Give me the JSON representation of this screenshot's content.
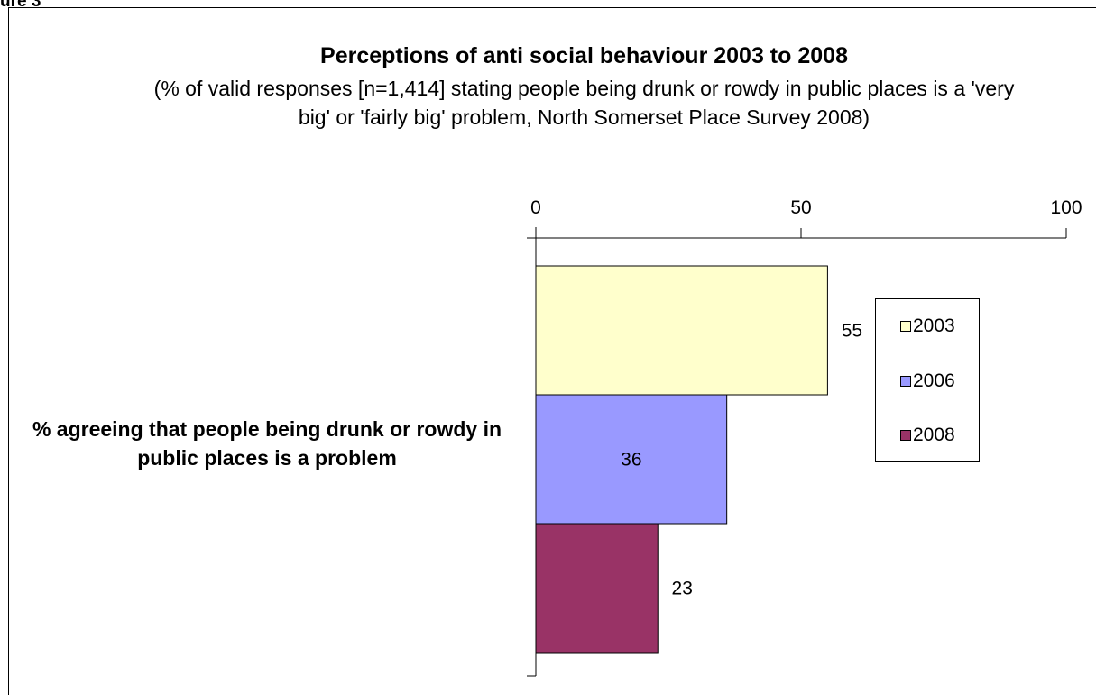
{
  "figure_label": "ure 3",
  "chart_data": {
    "type": "bar",
    "orientation": "horizontal",
    "title": "Perceptions of anti social behaviour 2003 to 2008",
    "subtitle": "(% of valid responses [n=1,414] stating people being drunk or rowdy in public places is a 'very big' or 'fairly big' problem, North Somerset Place Survey 2008)",
    "categories": [
      "% agreeing that people being drunk or rowdy in public places is a problem"
    ],
    "series": [
      {
        "name": "2003",
        "values": [
          55
        ],
        "color": "#FFFFCC"
      },
      {
        "name": "2006",
        "values": [
          36
        ],
        "color": "#9999FF"
      },
      {
        "name": "2008",
        "values": [
          23
        ],
        "color": "#993366"
      }
    ],
    "xlim": [
      0,
      100
    ],
    "xticks": [
      "0",
      "50",
      "100"
    ],
    "xaxis_position": "top",
    "legend_position": "right",
    "grid": false
  }
}
